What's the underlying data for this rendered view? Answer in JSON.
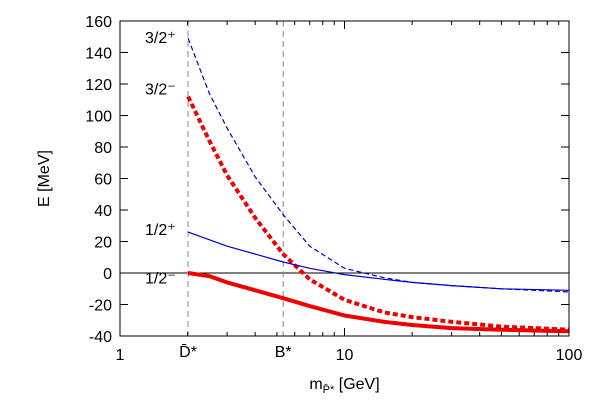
{
  "chart_data": {
    "type": "line",
    "title": "",
    "ylabel": "E [MeV]",
    "xlabel": {
      "base": "m",
      "subscript": "P̄*",
      "unit": " [GeV]"
    },
    "xscale": "log",
    "xlim": [
      1,
      100
    ],
    "ylim": [
      -40,
      160
    ],
    "x_ticks": [
      1,
      10,
      100
    ],
    "x_tick_labels": [
      "1",
      "10",
      "100"
    ],
    "y_ticks": [
      -40,
      -20,
      0,
      20,
      40,
      60,
      80,
      100,
      120,
      140,
      160
    ],
    "y_tick_labels": [
      "-40",
      "-20",
      "0",
      "20",
      "40",
      "60",
      "80",
      "100",
      "120",
      "140",
      "160"
    ],
    "zero_line": true,
    "vlines": [
      {
        "x": 2.01,
        "label": "D̄*"
      },
      {
        "x": 5.33,
        "label": "B*"
      }
    ],
    "series": [
      {
        "name": "3/2⁺",
        "label_y": 150,
        "color": "#0000cc",
        "style": "dashed-thin",
        "x": [
          2.01,
          2.5,
          3,
          4,
          5.33,
          7,
          10,
          15,
          20,
          30,
          50,
          70,
          100
        ],
        "y": [
          149,
          114,
          92,
          61,
          37,
          17,
          3,
          -3,
          -6,
          -8,
          -10,
          -11,
          -12
        ]
      },
      {
        "name": "3/2⁻",
        "label_y": 117,
        "color": "#ee0000",
        "style": "dashed-thick",
        "x": [
          2.01,
          2.5,
          3,
          4,
          5.33,
          7,
          10,
          15,
          20,
          30,
          50,
          70,
          100
        ],
        "y": [
          112,
          84,
          62,
          35,
          12,
          -4,
          -17,
          -25,
          -28,
          -31,
          -34,
          -35,
          -36
        ]
      },
      {
        "name": "1/2⁺",
        "label_y": 28,
        "color": "#0000cc",
        "style": "solid-thin",
        "x": [
          2.01,
          3,
          4,
          5.33,
          7,
          10,
          15,
          20,
          30,
          50,
          100
        ],
        "y": [
          26,
          17,
          12,
          7,
          3,
          -1,
          -4,
          -6,
          -8,
          -10,
          -11
        ]
      },
      {
        "name": "1/2⁻",
        "label_y": -3,
        "color": "#ee0000",
        "style": "solid-thick",
        "x": [
          2.01,
          2.5,
          3,
          4,
          5.33,
          7,
          10,
          15,
          20,
          30,
          50,
          70,
          100
        ],
        "y": [
          0,
          -2,
          -6,
          -11,
          -16,
          -21,
          -27,
          -31,
          -33,
          -35,
          -36,
          -36.5,
          -37
        ]
      }
    ]
  }
}
